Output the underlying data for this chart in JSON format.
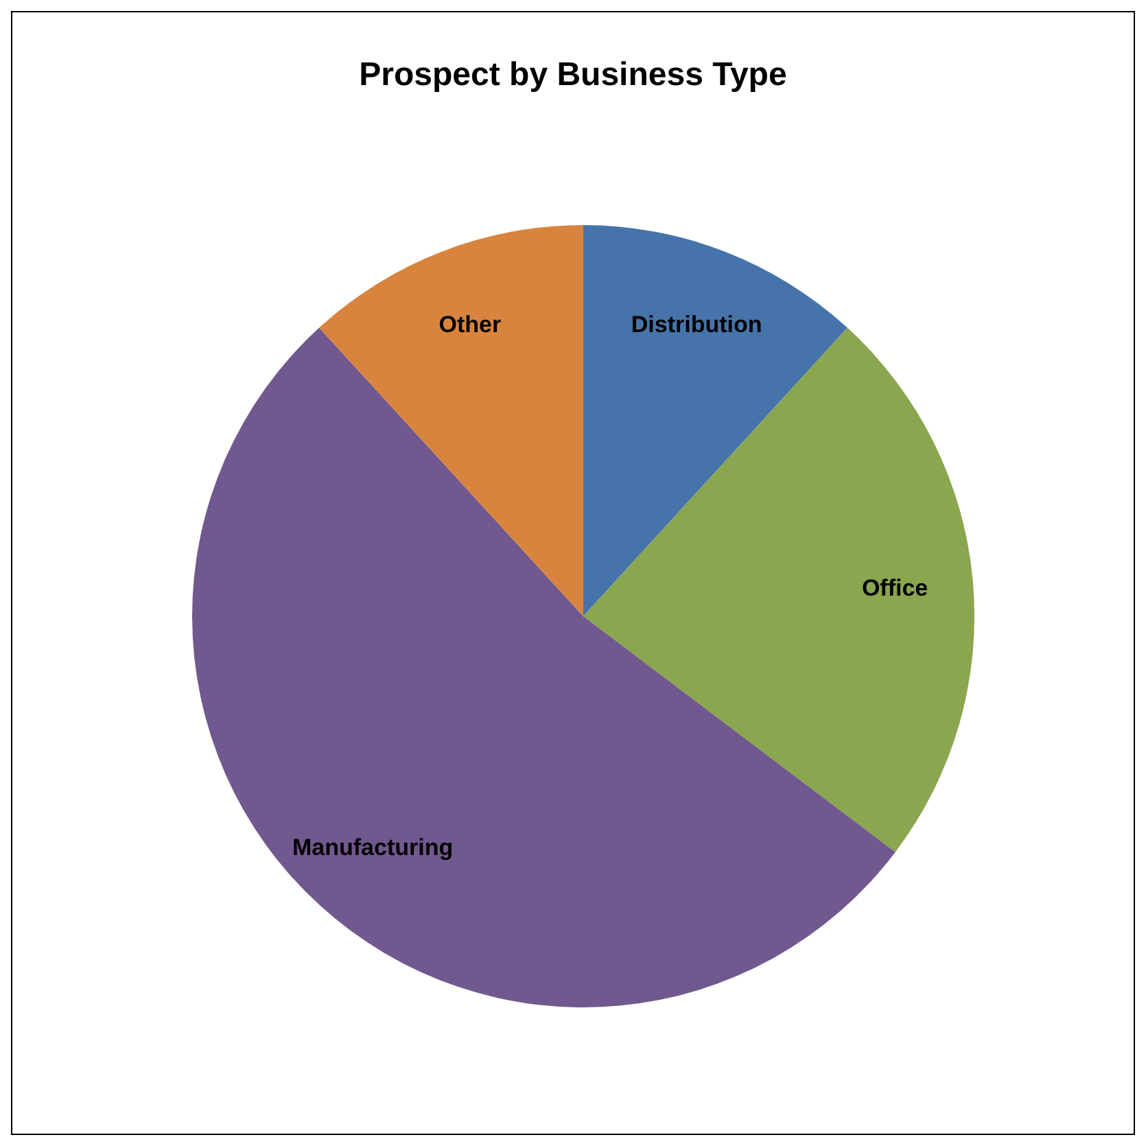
{
  "chart_data": {
    "type": "pie",
    "title": "Prospect by Business Type",
    "categories": [
      "Distribution",
      "Office",
      "Manufacturing",
      "Other"
    ],
    "values": [
      11.8,
      23.5,
      52.9,
      11.8
    ],
    "colors": [
      "#4674aa",
      "#8aa64f",
      "#71588f",
      "#d9843e"
    ]
  }
}
